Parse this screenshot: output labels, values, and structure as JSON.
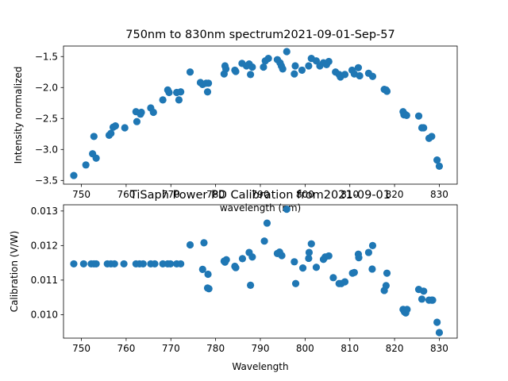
{
  "chart_data": [
    {
      "type": "scatter",
      "title": "750nm to 830nm spectrum2021-09-01-Sep-57",
      "xlabel": "wavelength (nm)",
      "ylabel": "Intensity normalized",
      "xlim": [
        746,
        834
      ],
      "ylim": [
        -3.56,
        -1.33
      ],
      "xticks": [
        750,
        760,
        770,
        780,
        790,
        800,
        810,
        820,
        830
      ],
      "yticks": [
        -3.5,
        -3.0,
        -2.5,
        -2.0,
        -1.5
      ],
      "ytick_labels": [
        "−3.5",
        "−3.0",
        "−2.5",
        "−2.0",
        "−1.5"
      ],
      "grid": false,
      "color": "#1f77b4",
      "points": [
        [
          748.3,
          -3.42
        ],
        [
          751.0,
          -3.25
        ],
        [
          752.5,
          -3.07
        ],
        [
          752.8,
          -2.79
        ],
        [
          753.3,
          -3.14
        ],
        [
          756.2,
          -2.77
        ],
        [
          756.6,
          -2.74
        ],
        [
          757.1,
          -2.64
        ],
        [
          757.6,
          -2.62
        ],
        [
          759.7,
          -2.65
        ],
        [
          762.2,
          -2.39
        ],
        [
          762.4,
          -2.55
        ],
        [
          763.2,
          -2.43
        ],
        [
          763.4,
          -2.4
        ],
        [
          765.5,
          -2.33
        ],
        [
          766.1,
          -2.4
        ],
        [
          768.2,
          -2.2
        ],
        [
          769.3,
          -2.04
        ],
        [
          769.6,
          -2.08
        ],
        [
          771.3,
          -2.08
        ],
        [
          771.8,
          -2.2
        ],
        [
          772.2,
          -2.07
        ],
        [
          774.3,
          -1.75
        ],
        [
          776.6,
          -1.92
        ],
        [
          777.1,
          -1.95
        ],
        [
          777.9,
          -1.93
        ],
        [
          778.2,
          -2.07
        ],
        [
          778.4,
          -1.93
        ],
        [
          781.9,
          -1.78
        ],
        [
          782.1,
          -1.65
        ],
        [
          782.3,
          -1.7
        ],
        [
          784.3,
          -1.72
        ],
        [
          784.5,
          -1.74
        ],
        [
          785.9,
          -1.61
        ],
        [
          786.9,
          -1.65
        ],
        [
          787.5,
          -1.62
        ],
        [
          787.8,
          -1.79
        ],
        [
          788.2,
          -1.67
        ],
        [
          790.7,
          -1.67
        ],
        [
          791.1,
          -1.57
        ],
        [
          791.8,
          -1.53
        ],
        [
          793.8,
          -1.55
        ],
        [
          794.4,
          -1.6
        ],
        [
          794.7,
          -1.65
        ],
        [
          795.0,
          -1.7
        ],
        [
          795.9,
          -1.42
        ],
        [
          797.6,
          -1.78
        ],
        [
          797.8,
          -1.65
        ],
        [
          799.3,
          -1.72
        ],
        [
          800.8,
          -1.65
        ],
        [
          801.4,
          -1.53
        ],
        [
          802.5,
          -1.57
        ],
        [
          803.3,
          -1.65
        ],
        [
          804.1,
          -1.6
        ],
        [
          804.8,
          -1.63
        ],
        [
          805.3,
          -1.58
        ],
        [
          806.8,
          -1.75
        ],
        [
          807.6,
          -1.79
        ],
        [
          807.9,
          -1.83
        ],
        [
          808.9,
          -1.79
        ],
        [
          810.5,
          -1.72
        ],
        [
          811.0,
          -1.78
        ],
        [
          811.9,
          -1.68
        ],
        [
          812.2,
          -1.81
        ],
        [
          814.2,
          -1.77
        ],
        [
          815.1,
          -1.82
        ],
        [
          817.7,
          -2.03
        ],
        [
          818.1,
          -2.04
        ],
        [
          818.3,
          -2.06
        ],
        [
          821.9,
          -2.39
        ],
        [
          822.1,
          -2.44
        ],
        [
          822.3,
          -2.43
        ],
        [
          822.7,
          -2.45
        ],
        [
          825.4,
          -2.46
        ],
        [
          826.1,
          -2.65
        ],
        [
          826.5,
          -2.65
        ],
        [
          827.7,
          -2.82
        ],
        [
          828.3,
          -2.79
        ],
        [
          829.5,
          -3.17
        ],
        [
          830.0,
          -3.27
        ]
      ]
    },
    {
      "type": "scatter",
      "title": "TiSaph Power PD Calibration from2021-09-01",
      "xlabel": "Wavelength",
      "ylabel": "Calibration (V/W)",
      "xlim": [
        746,
        834
      ],
      "ylim": [
        0.00932,
        0.01318
      ],
      "xticks": [
        750,
        760,
        770,
        780,
        790,
        800,
        810,
        820,
        830
      ],
      "yticks": [
        0.01,
        0.011,
        0.012,
        0.013
      ],
      "ytick_labels": [
        "0.010",
        "0.011",
        "0.012",
        "0.013"
      ],
      "grid": false,
      "color": "#1f77b4",
      "points": [
        [
          748.3,
          0.01147
        ],
        [
          750.5,
          0.01147
        ],
        [
          752.2,
          0.01147
        ],
        [
          752.8,
          0.01147
        ],
        [
          753.3,
          0.01147
        ],
        [
          755.8,
          0.01147
        ],
        [
          756.6,
          0.01147
        ],
        [
          757.4,
          0.01147
        ],
        [
          759.5,
          0.01147
        ],
        [
          762.2,
          0.01147
        ],
        [
          763.0,
          0.01147
        ],
        [
          763.8,
          0.01147
        ],
        [
          765.5,
          0.01147
        ],
        [
          766.4,
          0.01147
        ],
        [
          768.2,
          0.01147
        ],
        [
          769.3,
          0.01147
        ],
        [
          769.9,
          0.01147
        ],
        [
          771.3,
          0.01147
        ],
        [
          772.2,
          0.01147
        ],
        [
          774.3,
          0.01202
        ],
        [
          777.1,
          0.01131
        ],
        [
          777.4,
          0.01208
        ],
        [
          778.3,
          0.01117
        ],
        [
          778.2,
          0.01077
        ],
        [
          778.5,
          0.01075
        ],
        [
          781.9,
          0.01155
        ],
        [
          782.1,
          0.01152
        ],
        [
          782.4,
          0.01159
        ],
        [
          784.3,
          0.0114
        ],
        [
          784.5,
          0.01136
        ],
        [
          786.0,
          0.01162
        ],
        [
          787.5,
          0.0118
        ],
        [
          787.8,
          0.01085
        ],
        [
          788.2,
          0.01167
        ],
        [
          790.9,
          0.01213
        ],
        [
          791.5,
          0.01265
        ],
        [
          793.8,
          0.01177
        ],
        [
          794.3,
          0.01181
        ],
        [
          794.8,
          0.01171
        ],
        [
          795.9,
          0.01305
        ],
        [
          797.6,
          0.01153
        ],
        [
          797.9,
          0.0109
        ],
        [
          799.5,
          0.01135
        ],
        [
          800.8,
          0.01163
        ],
        [
          800.9,
          0.0118
        ],
        [
          801.4,
          0.01205
        ],
        [
          802.5,
          0.01137
        ],
        [
          804.1,
          0.0116
        ],
        [
          804.5,
          0.01167
        ],
        [
          805.3,
          0.0117
        ],
        [
          806.3,
          0.01107
        ],
        [
          807.6,
          0.0109
        ],
        [
          808.1,
          0.0109
        ],
        [
          808.9,
          0.01095
        ],
        [
          810.6,
          0.0112
        ],
        [
          811.0,
          0.01122
        ],
        [
          811.9,
          0.01175
        ],
        [
          812.0,
          0.01165
        ],
        [
          814.2,
          0.0118
        ],
        [
          815.1,
          0.012
        ],
        [
          815.0,
          0.01132
        ],
        [
          817.7,
          0.0107
        ],
        [
          818.1,
          0.01084
        ],
        [
          818.3,
          0.0112
        ],
        [
          821.9,
          0.01015
        ],
        [
          822.2,
          0.01008
        ],
        [
          822.5,
          0.01005
        ],
        [
          822.8,
          0.01015
        ],
        [
          825.4,
          0.01073
        ],
        [
          826.1,
          0.01045
        ],
        [
          826.5,
          0.01068
        ],
        [
          827.7,
          0.01042
        ],
        [
          828.3,
          0.01042
        ],
        [
          828.5,
          0.01042
        ],
        [
          829.5,
          0.00978
        ],
        [
          830.0,
          0.00948
        ]
      ]
    }
  ]
}
